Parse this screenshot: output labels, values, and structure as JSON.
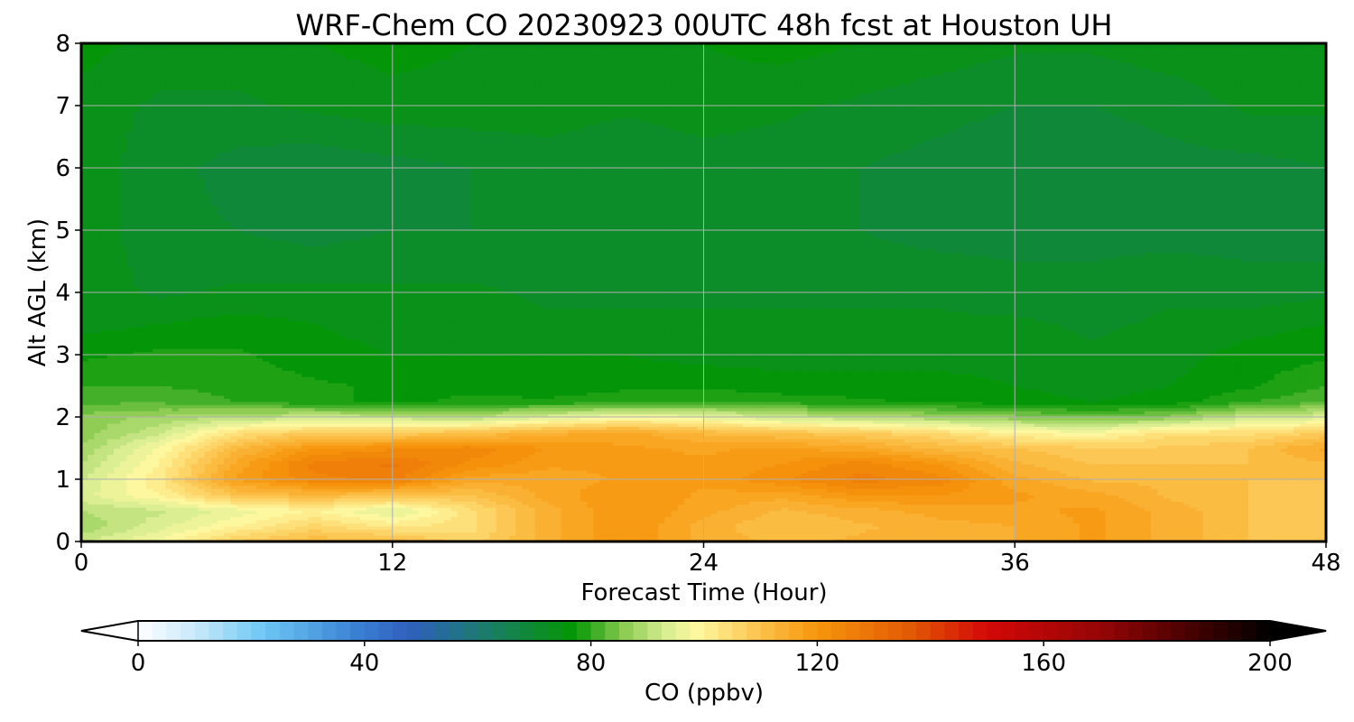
{
  "chart_data": {
    "type": "heatmap",
    "title": "WRF-Chem CO  20230923 00UTC 48h fcst at Houston UH",
    "xlabel": "Forecast Time (Hour)",
    "ylabel": "Alt AGL (km)",
    "xlim": [
      0,
      48
    ],
    "ylim": [
      0,
      8
    ],
    "xticks": [
      "0",
      "12",
      "24",
      "36",
      "48"
    ],
    "yticks": [
      "0",
      "1",
      "2",
      "3",
      "4",
      "5",
      "6",
      "7",
      "8"
    ],
    "grid": true,
    "x_hours": [
      0,
      3,
      6,
      9,
      12,
      15,
      18,
      21,
      24,
      27,
      30,
      33,
      36,
      39,
      42,
      45,
      48
    ],
    "y_km": [
      0,
      0.25,
      0.5,
      0.75,
      1.0,
      1.25,
      1.5,
      1.75,
      2.0,
      2.25,
      2.5,
      3.0,
      3.5,
      4.0,
      5.0,
      6.0,
      7.0,
      8.0
    ],
    "co_ppbv": [
      [
        92,
        98,
        108,
        112,
        112,
        106,
        114,
        120,
        114,
        112,
        113,
        114,
        115,
        118,
        114,
        110,
        108
      ],
      [
        88,
        94,
        100,
        106,
        102,
        104,
        114,
        120,
        114,
        110,
        112,
        114,
        115,
        118,
        114,
        110,
        108
      ],
      [
        90,
        92,
        96,
        100,
        94,
        104,
        114,
        120,
        116,
        112,
        114,
        116,
        117,
        118,
        114,
        110,
        108
      ],
      [
        94,
        100,
        110,
        112,
        110,
        110,
        116,
        120,
        117,
        116,
        120,
        120,
        118,
        116,
        112,
        110,
        108
      ],
      [
        92,
        102,
        118,
        124,
        126,
        116,
        116,
        118,
        118,
        122,
        126,
        124,
        116,
        112,
        112,
        110,
        110
      ],
      [
        90,
        100,
        116,
        126,
        128,
        122,
        118,
        118,
        118,
        120,
        124,
        120,
        113,
        110,
        110,
        110,
        112
      ],
      [
        88,
        98,
        112,
        120,
        122,
        124,
        120,
        118,
        117,
        118,
        116,
        112,
        110,
        108,
        108,
        110,
        116
      ],
      [
        86,
        92,
        104,
        108,
        108,
        110,
        114,
        116,
        112,
        110,
        108,
        105,
        100,
        98,
        104,
        104,
        108
      ],
      [
        86,
        88,
        90,
        92,
        91,
        90,
        94,
        98,
        96,
        92,
        90,
        88,
        86,
        84,
        86,
        92,
        94
      ],
      [
        82,
        82,
        80,
        78,
        77,
        78,
        78,
        79,
        80,
        79,
        78,
        77,
        76,
        75,
        76,
        80,
        82
      ],
      [
        80,
        80,
        79,
        78,
        77,
        77,
        76,
        77,
        77,
        76,
        76,
        76,
        75,
        74,
        75,
        77,
        80
      ],
      [
        77,
        78,
        78,
        76,
        75,
        75,
        75,
        75,
        74,
        74,
        74,
        74,
        74,
        73,
        74,
        76,
        77
      ],
      [
        74,
        75,
        76,
        75,
        74,
        74,
        73,
        73,
        73,
        73,
        73,
        73,
        73,
        72,
        73,
        74,
        75
      ],
      [
        74,
        72,
        73,
        73,
        73,
        73,
        72,
        72,
        72,
        72,
        72,
        72,
        71,
        71,
        72,
        71,
        72
      ],
      [
        74,
        71,
        70,
        69,
        70,
        70,
        71,
        71,
        70,
        70,
        70,
        69,
        69,
        69,
        69,
        69,
        68
      ],
      [
        74,
        71,
        69,
        68,
        69,
        70,
        71,
        70,
        71,
        71,
        70,
        69,
        68,
        68,
        69,
        69,
        70
      ],
      [
        74,
        72,
        72,
        73,
        74,
        74,
        74,
        73,
        74,
        73,
        72,
        71,
        70,
        70,
        71,
        73,
        73
      ],
      [
        76,
        74,
        74,
        75,
        76,
        75,
        74,
        75,
        75,
        76,
        75,
        74,
        73,
        73,
        74,
        75,
        75
      ]
    ],
    "colorbar": {
      "label": "CO  (ppbv)",
      "range": [
        0,
        200
      ],
      "step": 2.5,
      "ticks": [
        "0",
        "40",
        "80",
        "120",
        "160",
        "200"
      ],
      "extend": "both",
      "colors": [
        {
          "v": 0,
          "c": "#ffffff"
        },
        {
          "v": 10,
          "c": "#c9e9fb"
        },
        {
          "v": 22,
          "c": "#6ec8f5"
        },
        {
          "v": 38,
          "c": "#3b83d4"
        },
        {
          "v": 48,
          "c": "#2f5fbd"
        },
        {
          "v": 60,
          "c": "#1d7a74"
        },
        {
          "v": 77,
          "c": "#049604"
        },
        {
          "v": 86,
          "c": "#8ccc52"
        },
        {
          "v": 93,
          "c": "#d6ec90"
        },
        {
          "v": 99,
          "c": "#fff8a0"
        },
        {
          "v": 110,
          "c": "#fcc14a"
        },
        {
          "v": 120,
          "c": "#f7960c"
        },
        {
          "v": 137,
          "c": "#e25704"
        },
        {
          "v": 150,
          "c": "#d30808"
        },
        {
          "v": 170,
          "c": "#960505"
        },
        {
          "v": 190,
          "c": "#330000"
        },
        {
          "v": 200,
          "c": "#000000"
        }
      ]
    }
  }
}
